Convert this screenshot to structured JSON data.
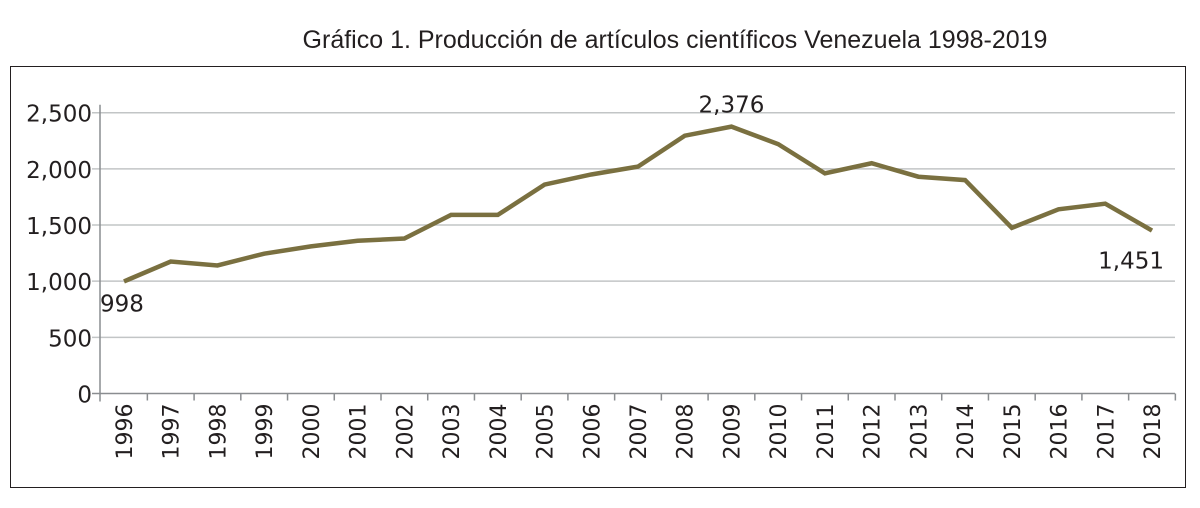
{
  "chart_data": {
    "type": "line",
    "title": "Gráfico 1. Producción de artículos científicos Venezuela 1998-2019",
    "xlabel": "",
    "ylabel": "",
    "categories": [
      "1996",
      "1997",
      "1998",
      "1999",
      "2000",
      "2001",
      "2002",
      "2003",
      "2004",
      "2005",
      "2006",
      "2007",
      "2008",
      "2009",
      "2010",
      "2011",
      "2012",
      "2013",
      "2014",
      "2015",
      "2016",
      "2017",
      "2018"
    ],
    "series": [
      {
        "values": [
          998,
          1175,
          1140,
          1245,
          1310,
          1360,
          1380,
          1590,
          1590,
          1860,
          1950,
          2020,
          2295,
          2376,
          2220,
          1960,
          2050,
          1930,
          1900,
          1475,
          1640,
          1690,
          1451
        ],
        "color": "#7a7040"
      }
    ],
    "ylim": [
      0,
      2500
    ],
    "yticks": [
      0,
      500,
      1000,
      1500,
      2000,
      2500
    ],
    "ytick_labels": [
      "0",
      "500",
      "1,000",
      "1,500",
      "2,000",
      "2,500"
    ],
    "data_labels": [
      {
        "category": "1996",
        "text": "998"
      },
      {
        "category": "2009",
        "text": "2,376"
      },
      {
        "category": "2018",
        "text": "1,451"
      }
    ],
    "grid": true,
    "legend": "none"
  }
}
